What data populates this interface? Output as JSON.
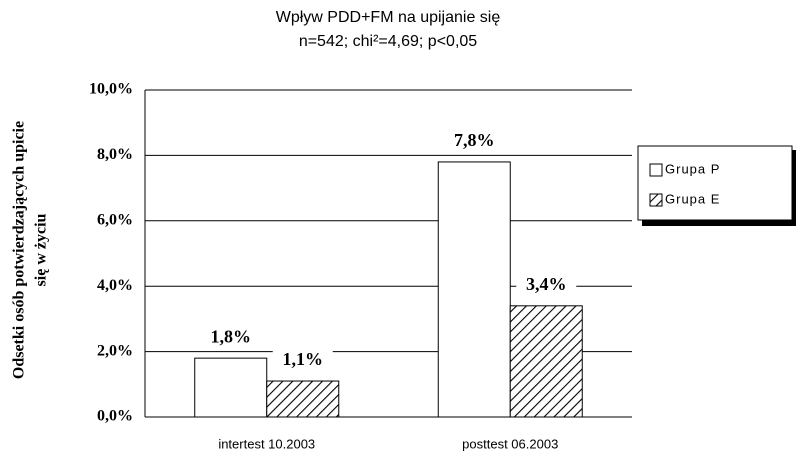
{
  "chart_data": {
    "type": "bar",
    "title": [
      "Wpływ PDD+FM na upijanie się",
      "n=542; chi²=4,69; p<0,05"
    ],
    "y_label": [
      "Odsetki osób potwierdzających upicie",
      "się w życiu"
    ],
    "categories": [
      "intertest 10.2003",
      "posttest 06.2003"
    ],
    "series": [
      {
        "name": "Grupa P",
        "color": "#ffffff",
        "pattern": "none",
        "values": [
          1.8,
          7.8
        ],
        "value_labels": [
          "1,8%",
          "7,8%"
        ]
      },
      {
        "name": "Grupa E",
        "color": "#ffffff",
        "pattern": "diagonal-hatch",
        "values": [
          1.1,
          3.4
        ],
        "value_labels": [
          "1,1%",
          "3,4%"
        ]
      }
    ],
    "ylim": [
      0,
      10
    ],
    "yticks": [
      {
        "value": 0,
        "label": "0,0%"
      },
      {
        "value": 2,
        "label": "2,0%"
      },
      {
        "value": 4,
        "label": "4,0%"
      },
      {
        "value": 6,
        "label": "6,0%"
      },
      {
        "value": 8,
        "label": "8,0%"
      },
      {
        "value": 10,
        "label": "10,0%"
      }
    ],
    "grid": true,
    "legend": "right"
  }
}
